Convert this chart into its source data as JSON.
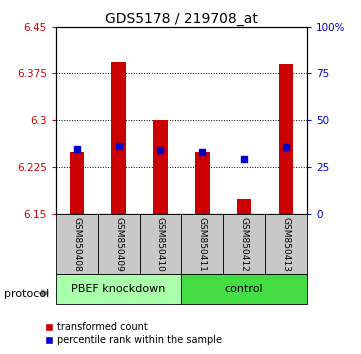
{
  "title": "GDS5178 / 219708_at",
  "samples": [
    "GSM850408",
    "GSM850409",
    "GSM850410",
    "GSM850411",
    "GSM850412",
    "GSM850413"
  ],
  "red_bar_tops": [
    6.249,
    6.393,
    6.3,
    6.249,
    6.175,
    6.39
  ],
  "blue_marker_values": [
    6.254,
    6.259,
    6.253,
    6.25,
    6.238,
    6.258
  ],
  "baseline": 6.15,
  "ylim_left": [
    6.15,
    6.45
  ],
  "ylim_right": [
    0,
    100
  ],
  "yticks_left": [
    6.15,
    6.225,
    6.3,
    6.375,
    6.45
  ],
  "yticks_right": [
    0,
    25,
    50,
    75,
    100
  ],
  "ytick_labels_right": [
    "0",
    "25",
    "50",
    "75",
    "100%"
  ],
  "groups": [
    {
      "label": "PBEF knockdown",
      "start": 0,
      "end": 3,
      "color": "#aaffaa"
    },
    {
      "label": "control",
      "start": 3,
      "end": 6,
      "color": "#44dd44"
    }
  ],
  "bar_color": "#cc0000",
  "blue_color": "#0000cc",
  "bar_width": 0.35,
  "background_plot": "#ffffff",
  "background_label": "#c8c8c8",
  "legend_red_label": "transformed count",
  "legend_blue_label": "percentile rank within the sample",
  "protocol_label": "protocol",
  "title_fontsize": 10,
  "tick_fontsize": 7.5,
  "sample_fontsize": 6.5,
  "group_fontsize": 8
}
